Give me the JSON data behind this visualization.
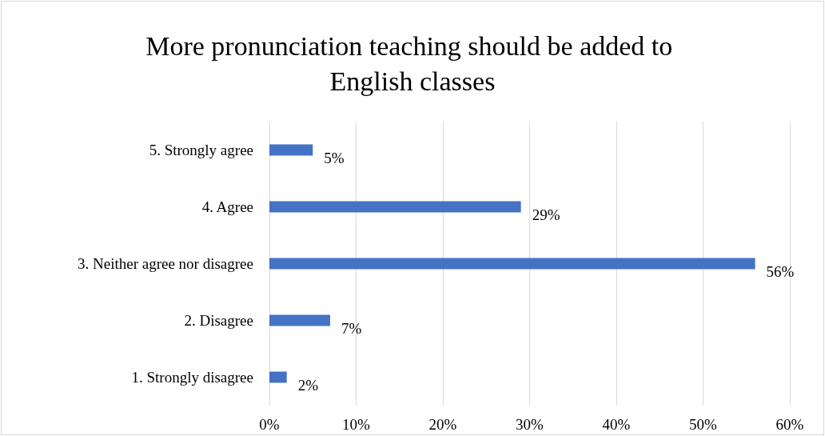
{
  "chart_data": {
    "type": "bar",
    "orientation": "horizontal",
    "title": "More pronunciation teaching should be added to English classes",
    "categories": [
      "5. Strongly agree",
      "4. Agree",
      "3. Neither agree nor disagree",
      "2. Disagree",
      "1. Strongly disagree"
    ],
    "values": [
      5,
      29,
      56,
      7,
      2
    ],
    "value_labels": [
      "5%",
      "29%",
      "56%",
      "7%",
      "2%"
    ],
    "color": "#4472c4",
    "xlim": [
      0,
      60
    ],
    "xticks": [
      {
        "value": 0,
        "label": "0%"
      },
      {
        "value": 10,
        "label": "10%"
      },
      {
        "value": 20,
        "label": "20%"
      },
      {
        "value": 30,
        "label": "30%"
      },
      {
        "value": 40,
        "label": "40%"
      },
      {
        "value": 50,
        "label": "50%"
      },
      {
        "value": 60,
        "label": "60%"
      }
    ],
    "grid": "x"
  }
}
